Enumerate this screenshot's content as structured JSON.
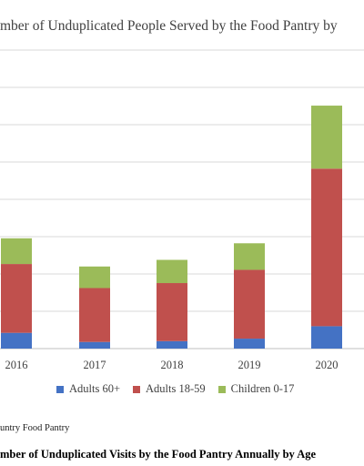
{
  "chart_data": {
    "type": "bar",
    "stacked": true,
    "title": "mber of Unduplicated People Served by the Food Pantry by",
    "categories": [
      "2016",
      "2017",
      "2018",
      "2019",
      "2020"
    ],
    "series": [
      {
        "name": "Adults 60+",
        "color": "#4472C4",
        "values": [
          19,
          8,
          9,
          12,
          27
        ]
      },
      {
        "name": "Adults 18-59",
        "color": "#C0504D",
        "values": [
          83,
          65,
          70,
          83,
          190
        ]
      },
      {
        "name": "Children 0-17",
        "color": "#9BBB59",
        "values": [
          31,
          26,
          28,
          32,
          76
        ]
      }
    ],
    "ylim": [
      0,
      360
    ],
    "grid": true,
    "legend_position": "bottom"
  },
  "source_note": "untry Food Pantry",
  "caption": "mber of Unduplicated Visits by the Food Pantry Annually by Age"
}
